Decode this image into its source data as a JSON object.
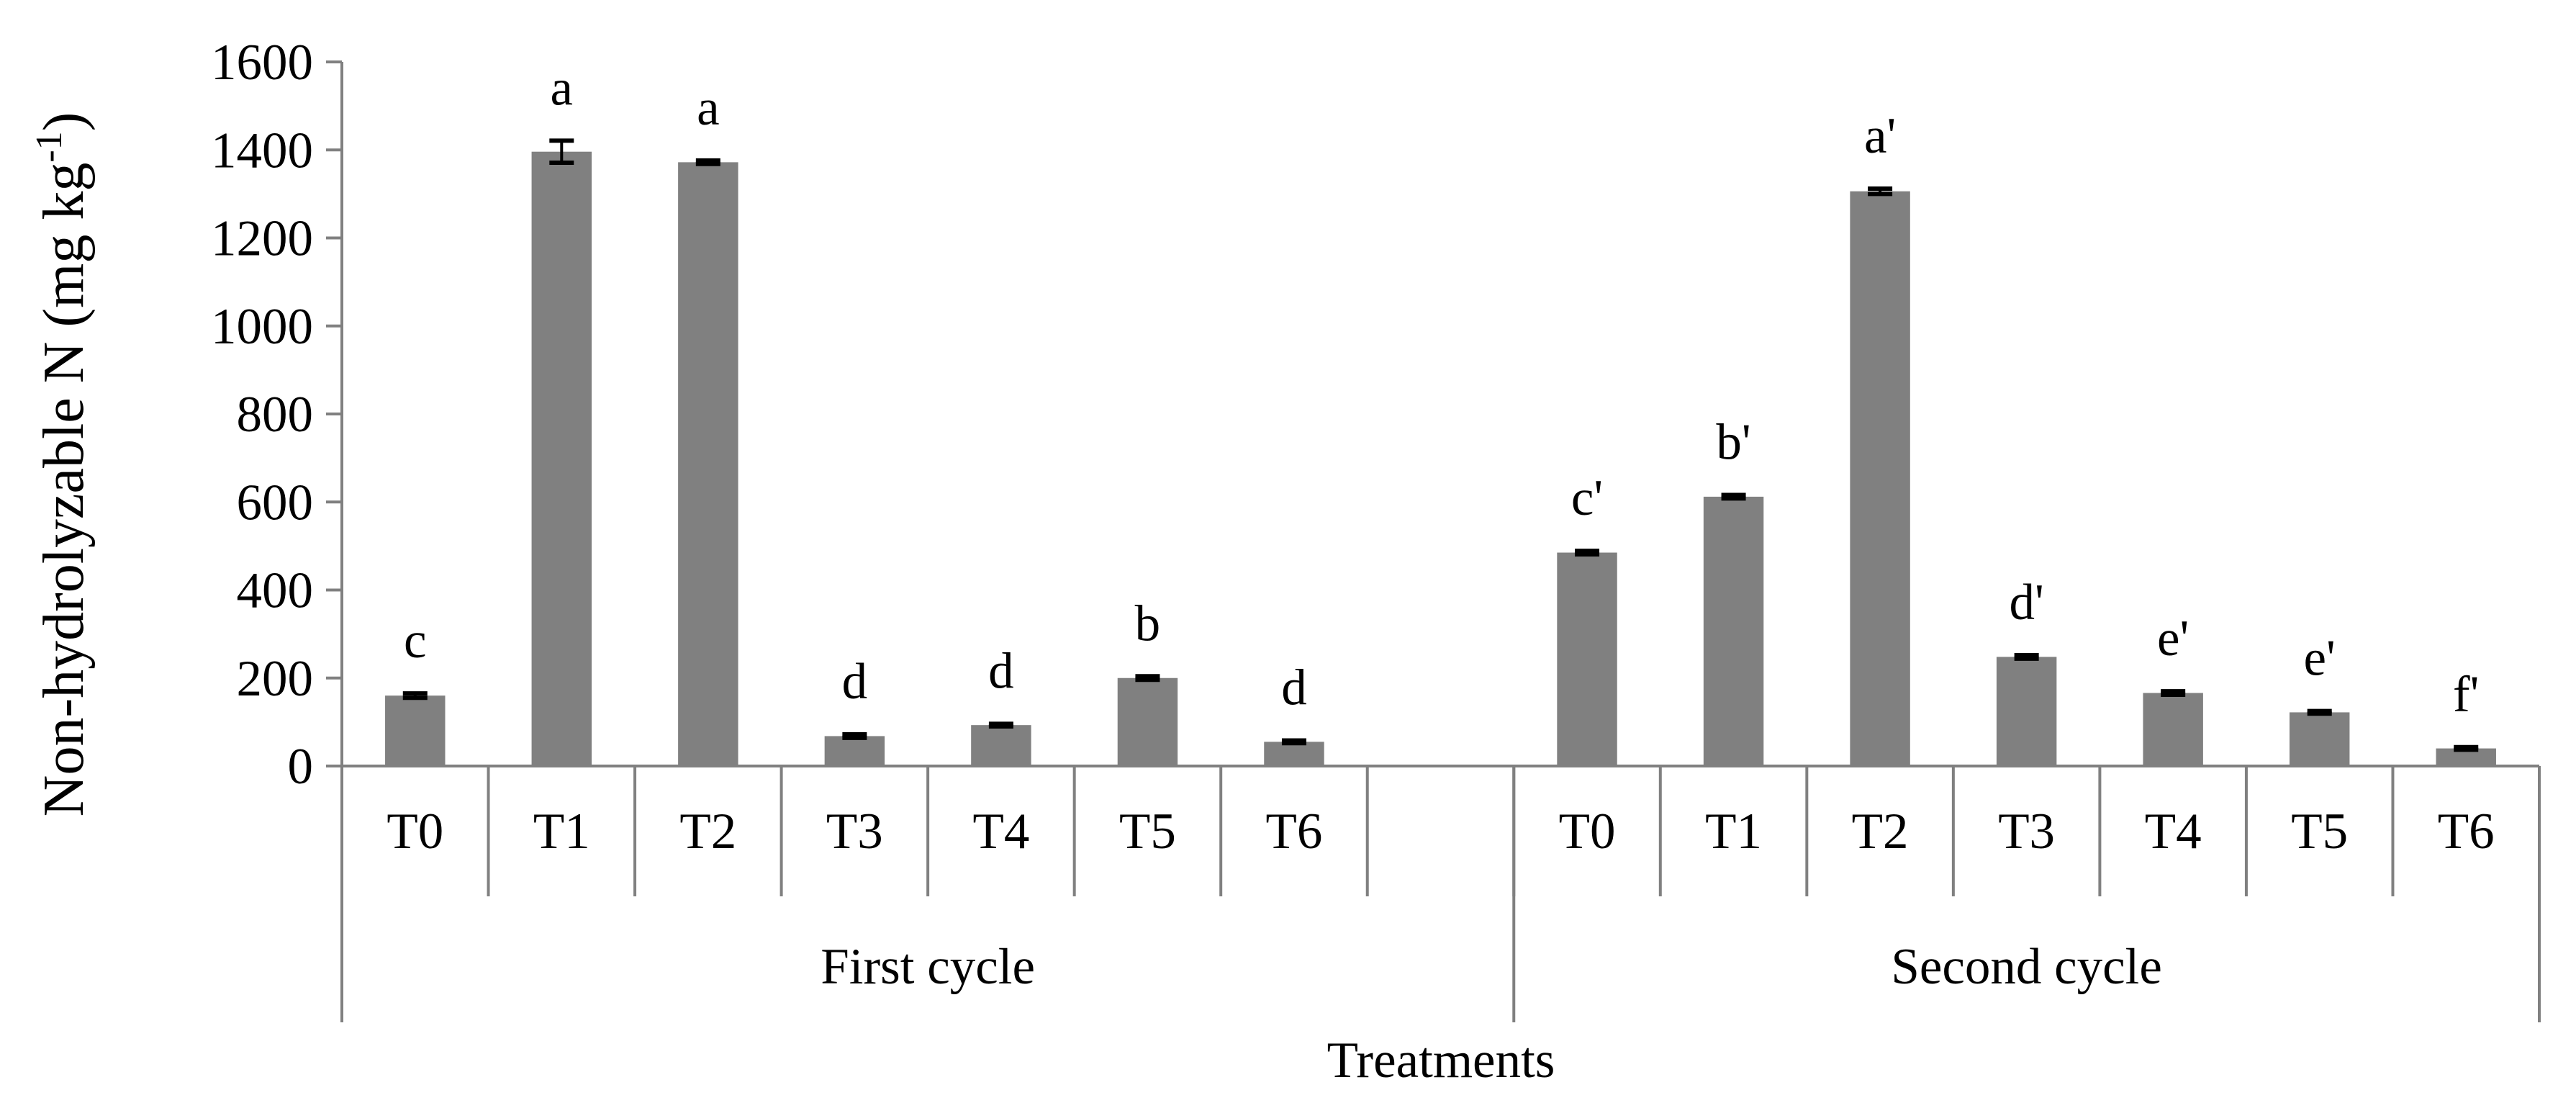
{
  "chart_data": {
    "type": "bar",
    "title": "",
    "ylabel": "Non-hydrolyzable N (mg kg",
    "ylabel_sup": "-1",
    "ylabel_close": ")",
    "xlabel": "Treatments",
    "ylim": [
      0,
      1600
    ],
    "yticks": [
      0,
      200,
      400,
      600,
      800,
      1000,
      1200,
      1400,
      1600
    ],
    "bar_color": "#808080",
    "grid": false,
    "groups": [
      {
        "name": "First cycle",
        "categories": [
          "T0",
          "T1",
          "T2",
          "T3",
          "T4",
          "T5",
          "T6",
          ""
        ],
        "values": [
          160,
          1396,
          1372,
          68,
          93,
          200,
          55,
          null
        ],
        "errors": [
          5,
          25,
          4,
          4,
          3,
          4,
          3,
          null
        ],
        "labels": [
          "c",
          "a",
          "a",
          "d",
          "d",
          "b",
          "d",
          ""
        ]
      },
      {
        "name": "Second cycle",
        "categories": [
          "T0",
          "T1",
          "T2",
          "T3",
          "T4",
          "T5",
          "T6"
        ],
        "values": [
          485,
          612,
          1306,
          248,
          166,
          122,
          40
        ],
        "errors": [
          4,
          4,
          6,
          4,
          4,
          3,
          3
        ],
        "labels": [
          "c'",
          "b'",
          "a'",
          "d'",
          "e'",
          "e'",
          "f'"
        ]
      }
    ]
  }
}
